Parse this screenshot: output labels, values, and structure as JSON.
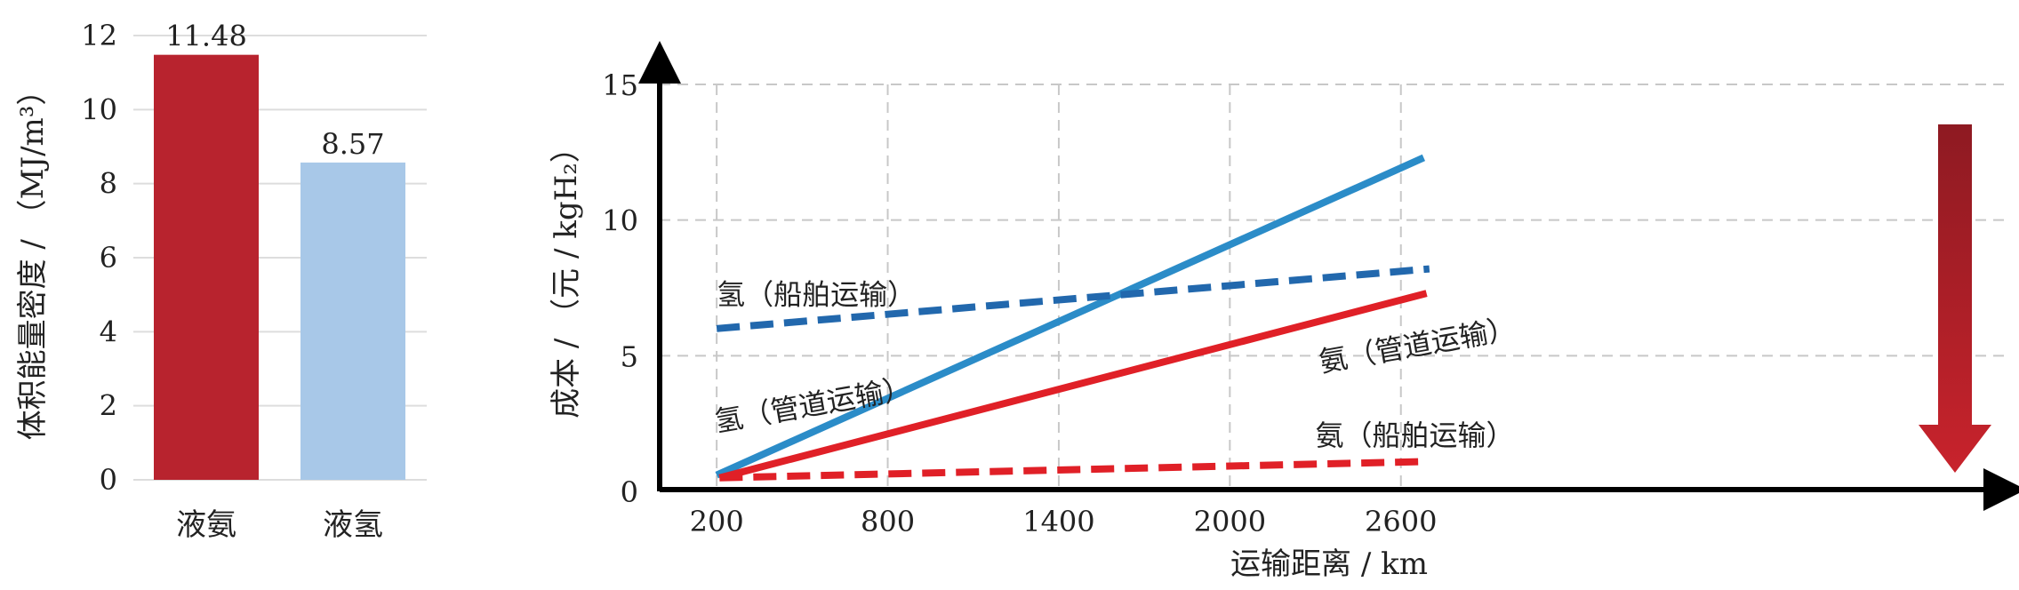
{
  "chart_data": [
    {
      "type": "bar",
      "categories": [
        "液氨",
        "液氢"
      ],
      "values": [
        11.48,
        8.57
      ],
      "value_labels": [
        "11.48",
        "8.57"
      ],
      "ylabel": "体积能量密度 / （MJ/m³）",
      "ylim": [
        0,
        12
      ],
      "yticks": [
        0,
        2,
        4,
        6,
        8,
        10,
        12
      ],
      "grid": true,
      "colors": [
        "#b8232e",
        "#a8c8e8"
      ]
    },
    {
      "type": "line",
      "xlabel": "运输距离 / km",
      "ylabel": "成本 / （元 / kgH₂）",
      "xlim": [
        0,
        3000
      ],
      "ylim": [
        0,
        15
      ],
      "xticks": [
        200,
        800,
        1400,
        2000,
        2600
      ],
      "yticks": [
        0,
        5,
        10,
        15
      ],
      "grid": true,
      "series": [
        {
          "name": "氢（管道运输）",
          "color": "#2b8cc8",
          "dashed": false,
          "x": [
            200,
            2680
          ],
          "y": [
            0.6,
            12.3
          ],
          "label_pos": [
            200,
            2.2
          ],
          "label_angle": -10
        },
        {
          "name": "氢（船舶运输）",
          "color": "#2268ad",
          "dashed": true,
          "x": [
            200,
            2700
          ],
          "y": [
            6.0,
            8.2
          ],
          "label_pos": [
            200,
            6.9
          ],
          "label_angle": 0
        },
        {
          "name": "氨（管道运输）",
          "color": "#e02027",
          "dashed": false,
          "x": [
            210,
            2690
          ],
          "y": [
            0.5,
            7.3
          ],
          "label_pos": [
            2320,
            4.4
          ],
          "label_angle": -10
        },
        {
          "name": "氨（船舶运输）",
          "color": "#e02027",
          "dashed": true,
          "x": [
            210,
            2690
          ],
          "y": [
            0.5,
            1.1
          ],
          "label_pos": [
            2300,
            1.7
          ],
          "label_angle": 0
        }
      ],
      "arrow_color": [
        "#8e1a22",
        "#c8232c"
      ]
    }
  ]
}
